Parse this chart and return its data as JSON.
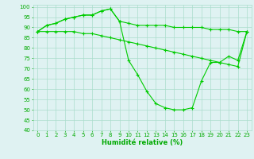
{
  "x": [
    0,
    1,
    2,
    3,
    4,
    5,
    6,
    7,
    8,
    9,
    10,
    11,
    12,
    13,
    14,
    15,
    16,
    17,
    18,
    19,
    20,
    21,
    22,
    23
  ],
  "line1": [
    88,
    91,
    92,
    94,
    95,
    96,
    96,
    98,
    99,
    93,
    92,
    91,
    91,
    91,
    91,
    90,
    90,
    90,
    90,
    89,
    89,
    89,
    88,
    88
  ],
  "line2": [
    88,
    91,
    92,
    94,
    95,
    96,
    96,
    98,
    99,
    93,
    74,
    67,
    59,
    53,
    51,
    50,
    50,
    51,
    64,
    73,
    73,
    76,
    74,
    88
  ],
  "line3": [
    88,
    88,
    88,
    88,
    88,
    87,
    87,
    86,
    85,
    84,
    83,
    82,
    81,
    80,
    79,
    78,
    77,
    76,
    75,
    74,
    73,
    72,
    71,
    88
  ],
  "line_color": "#00cc00",
  "bg_color": "#dff2f2",
  "grid_color": "#aaddcc",
  "xlabel": "Humidité relative (%)",
  "xlabel_color": "#00aa00",
  "xlabel_fontsize": 6.0,
  "tick_color": "#00aa00",
  "tick_fontsize": 5.0,
  "ylim": [
    40,
    101
  ],
  "yticks": [
    40,
    45,
    50,
    55,
    60,
    65,
    70,
    75,
    80,
    85,
    90,
    95,
    100
  ],
  "xticks": [
    0,
    1,
    2,
    3,
    4,
    5,
    6,
    7,
    8,
    9,
    10,
    11,
    12,
    13,
    14,
    15,
    16,
    17,
    18,
    19,
    20,
    21,
    22,
    23
  ]
}
